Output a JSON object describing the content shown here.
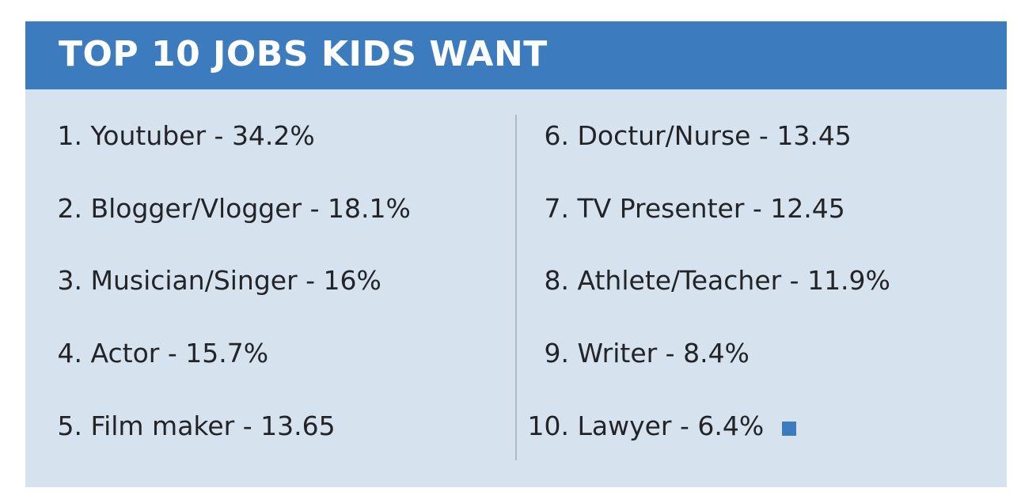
{
  "title": "TOP 10 JOBS KIDS WANT",
  "jobs_left": [
    {
      "rank": "1.",
      "text": "Youtuber - 34.2%"
    },
    {
      "rank": "2.",
      "text": "Blogger/Vlogger - 18.1%"
    },
    {
      "rank": "3.",
      "text": "Musician/Singer - 16%"
    },
    {
      "rank": "4.",
      "text": "Actor - 15.7%"
    },
    {
      "rank": "5.",
      "text": "Film maker - 13.65"
    }
  ],
  "jobs_right": [
    {
      "rank": "6.",
      "text": "Doctur/Nurse - 13.45"
    },
    {
      "rank": "7.",
      "text": "TV Presenter - 12.45"
    },
    {
      "rank": "8.",
      "text": "Athlete/Teacher - 11.9%"
    },
    {
      "rank": "9.",
      "text": "Writer - 8.4%"
    },
    {
      "rank": "10.",
      "text": "Lawyer - 6.4%"
    }
  ],
  "colors": {
    "header_bg": "#3d7bbf",
    "card_bg": "#d6e3ef",
    "text": "#222428",
    "end_mark": "#3d7bbf"
  }
}
